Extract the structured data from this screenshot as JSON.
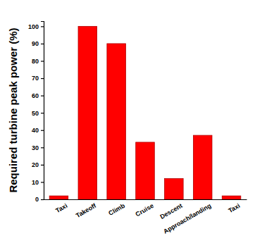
{
  "chart_data": {
    "type": "bar",
    "y_label": "Required turbine peak power (%)",
    "categories": [
      "Taxi",
      "Takeoff",
      "Climb",
      "Cruise",
      "Descent",
      "Approach/landing",
      "Taxi"
    ],
    "values": [
      2,
      100,
      90,
      33,
      12,
      37,
      2
    ],
    "color": "#ff0000",
    "ylim": [
      0,
      103
    ],
    "yticks": [
      0,
      10,
      20,
      30,
      40,
      50,
      60,
      70,
      80,
      90,
      100
    ],
    "grid": false
  }
}
